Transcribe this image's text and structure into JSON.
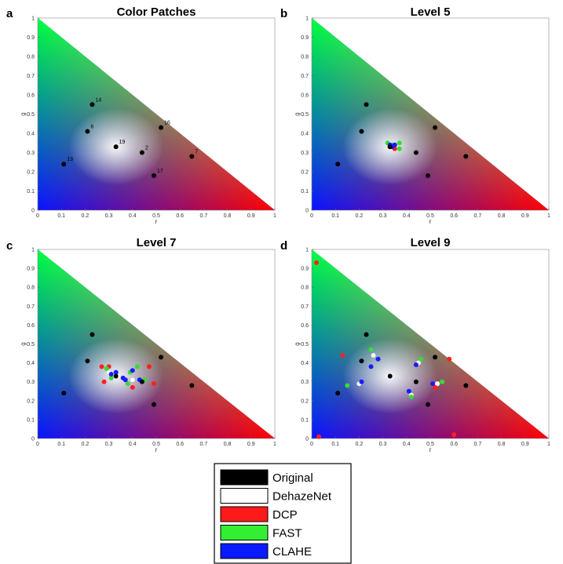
{
  "chart_data": [
    {
      "type": "scatter",
      "panel_letter": "a",
      "title": "Color Patches",
      "xlabel": "r",
      "ylabel": "g",
      "xlim": [
        0,
        1
      ],
      "ylim": [
        0,
        1
      ],
      "xticks": [
        "0",
        "0.1",
        "0.2",
        "0.3",
        "0.4",
        "0.5",
        "0.6",
        "0.7",
        "0.8",
        "0.9",
        "1"
      ],
      "yticks": [
        "0",
        "0.1",
        "0.2",
        "0.3",
        "0.4",
        "0.5",
        "0.6",
        "0.7",
        "0.8",
        "0.9",
        "1"
      ],
      "series": [
        {
          "name": "Original",
          "color": "#000000",
          "points": [
            {
              "x": 0.23,
              "y": 0.55,
              "label": "14"
            },
            {
              "x": 0.21,
              "y": 0.41,
              "label": "6"
            },
            {
              "x": 0.11,
              "y": 0.24,
              "label": "13"
            },
            {
              "x": 0.33,
              "y": 0.33,
              "label": "19"
            },
            {
              "x": 0.44,
              "y": 0.3,
              "label": "2"
            },
            {
              "x": 0.52,
              "y": 0.43,
              "label": "16"
            },
            {
              "x": 0.65,
              "y": 0.28,
              "label": "7"
            },
            {
              "x": 0.49,
              "y": 0.18,
              "label": "17"
            }
          ]
        }
      ]
    },
    {
      "type": "scatter",
      "panel_letter": "b",
      "title": "Level 5",
      "xlabel": "r",
      "ylabel": "g",
      "xlim": [
        0,
        1
      ],
      "ylim": [
        0,
        1
      ],
      "xticks": [
        "0",
        "0.1",
        "0.2",
        "0.3",
        "0.4",
        "0.5",
        "0.6",
        "0.7",
        "0.8",
        "0.9",
        "1"
      ],
      "yticks": [
        "0",
        "0.1",
        "0.2",
        "0.3",
        "0.4",
        "0.5",
        "0.6",
        "0.7",
        "0.8",
        "0.9",
        "1"
      ],
      "series": [
        {
          "name": "DehazeNet",
          "color": "#ffffff",
          "points": [
            {
              "x": 0.33,
              "y": 0.34
            },
            {
              "x": 0.34,
              "y": 0.33
            },
            {
              "x": 0.35,
              "y": 0.34
            }
          ]
        },
        {
          "name": "DCP",
          "color": "#ff2020",
          "points": [
            {
              "x": 0.33,
              "y": 0.33
            },
            {
              "x": 0.35,
              "y": 0.32
            }
          ]
        },
        {
          "name": "FAST",
          "color": "#33dd33",
          "points": [
            {
              "x": 0.32,
              "y": 0.35
            },
            {
              "x": 0.37,
              "y": 0.35
            },
            {
              "x": 0.37,
              "y": 0.32
            },
            {
              "x": 0.34,
              "y": 0.34
            }
          ]
        },
        {
          "name": "CLAHE",
          "color": "#1a1aff",
          "points": [
            {
              "x": 0.33,
              "y": 0.34
            },
            {
              "x": 0.35,
              "y": 0.34
            },
            {
              "x": 0.34,
              "y": 0.33
            }
          ]
        },
        {
          "name": "Original",
          "color": "#000000",
          "points": [
            {
              "x": 0.23,
              "y": 0.55
            },
            {
              "x": 0.21,
              "y": 0.41
            },
            {
              "x": 0.11,
              "y": 0.24
            },
            {
              "x": 0.33,
              "y": 0.33
            },
            {
              "x": 0.44,
              "y": 0.3
            },
            {
              "x": 0.52,
              "y": 0.43
            },
            {
              "x": 0.65,
              "y": 0.28
            },
            {
              "x": 0.49,
              "y": 0.18
            }
          ]
        }
      ]
    },
    {
      "type": "scatter",
      "panel_letter": "c",
      "title": "Level 7",
      "xlabel": "r",
      "ylabel": "g",
      "xlim": [
        0,
        1
      ],
      "ylim": [
        0,
        1
      ],
      "xticks": [
        "0",
        "0.1",
        "0.2",
        "0.3",
        "0.4",
        "0.5",
        "0.6",
        "0.7",
        "0.8",
        "0.9",
        "1"
      ],
      "yticks": [
        "0",
        "0.1",
        "0.2",
        "0.3",
        "0.4",
        "0.5",
        "0.6",
        "0.7",
        "0.8",
        "0.9",
        "1"
      ],
      "series": [
        {
          "name": "DehazeNet",
          "color": "#ffffff",
          "points": [
            {
              "x": 0.3,
              "y": 0.35
            },
            {
              "x": 0.34,
              "y": 0.33
            },
            {
              "x": 0.4,
              "y": 0.31
            },
            {
              "x": 0.44,
              "y": 0.3
            }
          ]
        },
        {
          "name": "DCP",
          "color": "#ff2020",
          "points": [
            {
              "x": 0.27,
              "y": 0.38
            },
            {
              "x": 0.28,
              "y": 0.3
            },
            {
              "x": 0.3,
              "y": 0.38
            },
            {
              "x": 0.4,
              "y": 0.27
            },
            {
              "x": 0.47,
              "y": 0.38
            },
            {
              "x": 0.49,
              "y": 0.29
            }
          ]
        },
        {
          "name": "FAST",
          "color": "#33dd33",
          "points": [
            {
              "x": 0.29,
              "y": 0.37
            },
            {
              "x": 0.31,
              "y": 0.32
            },
            {
              "x": 0.38,
              "y": 0.29
            },
            {
              "x": 0.42,
              "y": 0.38
            },
            {
              "x": 0.45,
              "y": 0.31
            },
            {
              "x": 0.39,
              "y": 0.35
            }
          ]
        },
        {
          "name": "CLAHE",
          "color": "#1a1aff",
          "points": [
            {
              "x": 0.31,
              "y": 0.34
            },
            {
              "x": 0.33,
              "y": 0.35
            },
            {
              "x": 0.36,
              "y": 0.32
            },
            {
              "x": 0.4,
              "y": 0.36
            },
            {
              "x": 0.43,
              "y": 0.31
            },
            {
              "x": 0.37,
              "y": 0.31
            }
          ]
        },
        {
          "name": "Original",
          "color": "#000000",
          "points": [
            {
              "x": 0.23,
              "y": 0.55
            },
            {
              "x": 0.21,
              "y": 0.41
            },
            {
              "x": 0.11,
              "y": 0.24
            },
            {
              "x": 0.33,
              "y": 0.33
            },
            {
              "x": 0.44,
              "y": 0.3
            },
            {
              "x": 0.52,
              "y": 0.43
            },
            {
              "x": 0.65,
              "y": 0.28
            },
            {
              "x": 0.49,
              "y": 0.18
            }
          ]
        }
      ]
    },
    {
      "type": "scatter",
      "panel_letter": "d",
      "title": "Level 9",
      "xlabel": "r",
      "ylabel": "g",
      "xlim": [
        0,
        1
      ],
      "ylim": [
        0,
        1
      ],
      "xticks": [
        "0",
        "0.1",
        "0.2",
        "0.3",
        "0.4",
        "0.5",
        "0.6",
        "0.7",
        "0.8",
        "0.9",
        "1"
      ],
      "yticks": [
        "0",
        "0.1",
        "0.2",
        "0.3",
        "0.4",
        "0.5",
        "0.6",
        "0.7",
        "0.8",
        "0.9",
        "1"
      ],
      "series": [
        {
          "name": "DehazeNet",
          "color": "#ffffff",
          "points": [
            {
              "x": 0.2,
              "y": 0.29
            },
            {
              "x": 0.26,
              "y": 0.44
            },
            {
              "x": 0.42,
              "y": 0.23
            },
            {
              "x": 0.45,
              "y": 0.4
            },
            {
              "x": 0.53,
              "y": 0.29
            },
            {
              "x": 0.32,
              "y": 0.33
            }
          ]
        },
        {
          "name": "DCP",
          "color": "#ff2020",
          "points": [
            {
              "x": 0.02,
              "y": 0.93
            },
            {
              "x": 0.03,
              "y": 0.01
            },
            {
              "x": 0.13,
              "y": 0.44
            },
            {
              "x": 0.58,
              "y": 0.42
            },
            {
              "x": 0.6,
              "y": 0.02
            },
            {
              "x": 0.52,
              "y": 0.27
            }
          ]
        },
        {
          "name": "FAST",
          "color": "#33dd33",
          "points": [
            {
              "x": 0.15,
              "y": 0.28
            },
            {
              "x": 0.25,
              "y": 0.47
            },
            {
              "x": 0.42,
              "y": 0.22
            },
            {
              "x": 0.46,
              "y": 0.42
            },
            {
              "x": 0.55,
              "y": 0.3
            }
          ]
        },
        {
          "name": "CLAHE",
          "color": "#1a1aff",
          "points": [
            {
              "x": 0.21,
              "y": 0.3
            },
            {
              "x": 0.25,
              "y": 0.38
            },
            {
              "x": 0.28,
              "y": 0.42
            },
            {
              "x": 0.41,
              "y": 0.25
            },
            {
              "x": 0.44,
              "y": 0.39
            },
            {
              "x": 0.51,
              "y": 0.29
            }
          ]
        },
        {
          "name": "Original",
          "color": "#000000",
          "points": [
            {
              "x": 0.23,
              "y": 0.55
            },
            {
              "x": 0.21,
              "y": 0.41
            },
            {
              "x": 0.11,
              "y": 0.24
            },
            {
              "x": 0.33,
              "y": 0.33
            },
            {
              "x": 0.44,
              "y": 0.3
            },
            {
              "x": 0.52,
              "y": 0.43
            },
            {
              "x": 0.65,
              "y": 0.28
            },
            {
              "x": 0.49,
              "y": 0.18
            }
          ]
        }
      ]
    }
  ],
  "legend": {
    "placement": "bottom-center",
    "entries": [
      {
        "label": "Original",
        "color": "#000000"
      },
      {
        "label": "DehazeNet",
        "color": "#ffffff"
      },
      {
        "label": "DCP",
        "color": "#ff1a1a"
      },
      {
        "label": "FAST",
        "color": "#33ee33"
      },
      {
        "label": "CLAHE",
        "color": "#0a1aff"
      }
    ]
  }
}
